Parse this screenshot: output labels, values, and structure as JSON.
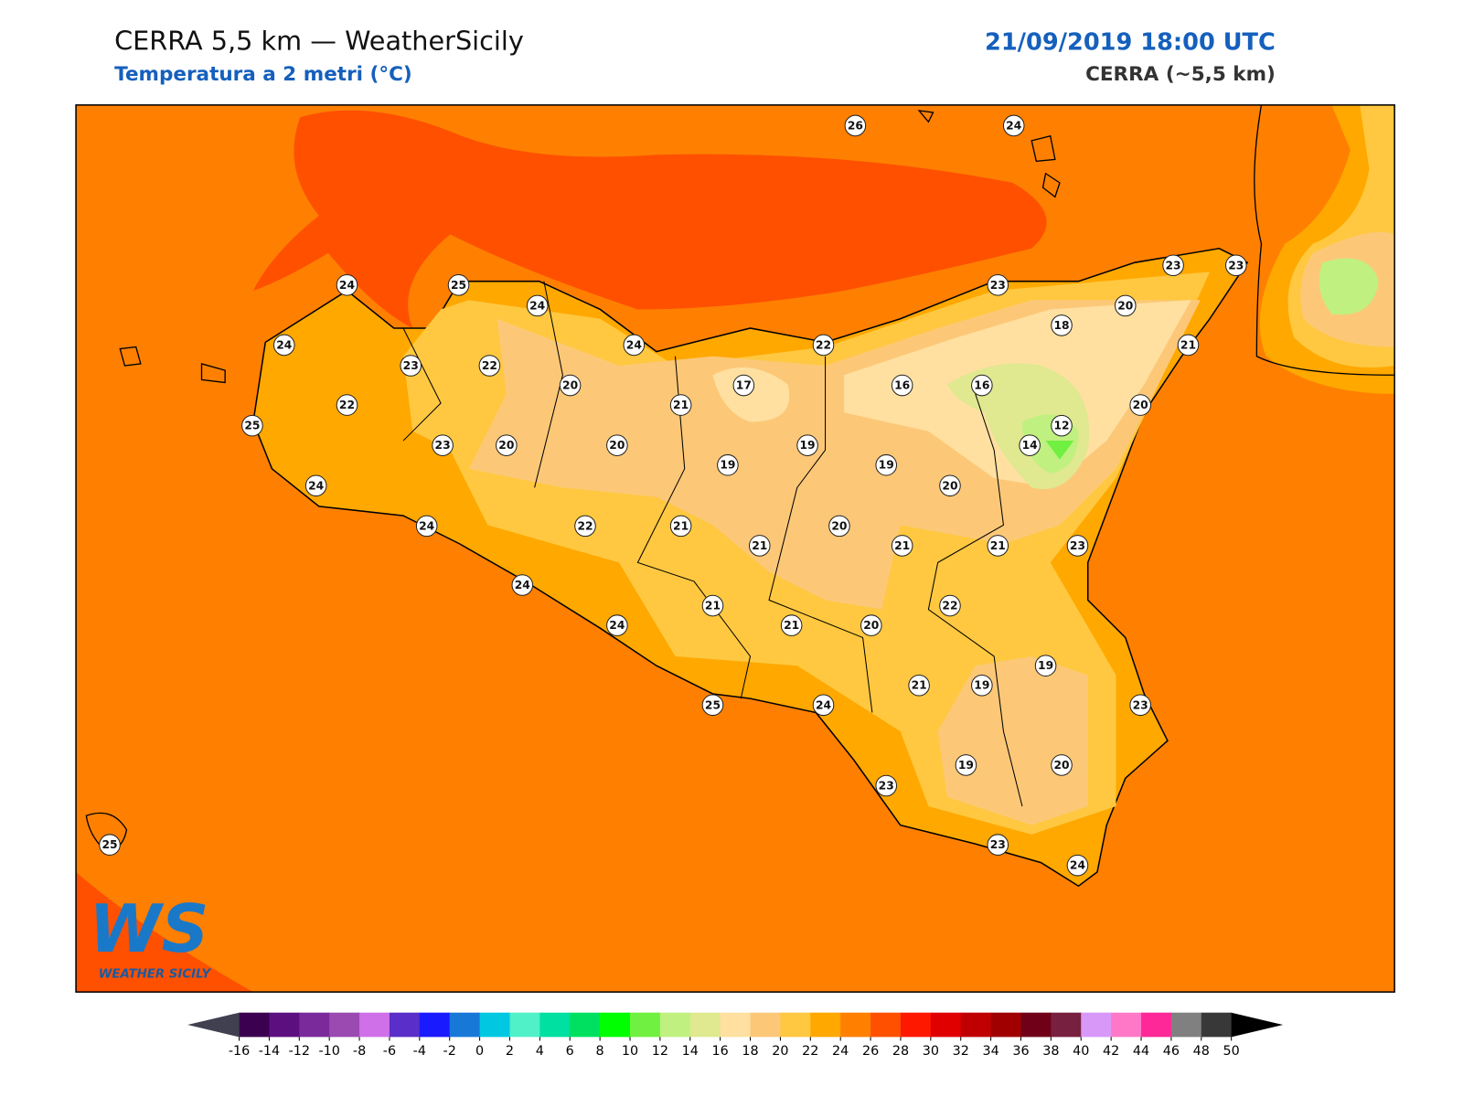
{
  "header": {
    "title": "CERRA 5,5 km — WeatherSicily",
    "subtitle": "Temperatura a 2 metri (°C)",
    "datetime": "21/09/2019 18:00 UTC",
    "model": "CERRA (~5,5 km)"
  },
  "logo": {
    "initials": "WS",
    "name": "WEATHER SICILY"
  },
  "map": {
    "stations": [
      26,
      24,
      24,
      25,
      24,
      24,
      23,
      22,
      24,
      22,
      23,
      23,
      23,
      20,
      18,
      21,
      20,
      21,
      17,
      16,
      16,
      22,
      25,
      20,
      12,
      14,
      23,
      20,
      20,
      19,
      19,
      19,
      20,
      24,
      24,
      22,
      21,
      21,
      20,
      21,
      21,
      23,
      24,
      22,
      21,
      21,
      20,
      24,
      19,
      19,
      21,
      25,
      24,
      23,
      23,
      19,
      20,
      23,
      24,
      25
    ]
  },
  "colorbar": {
    "ticks": [
      -16,
      -14,
      -12,
      -10,
      -8,
      -6,
      -4,
      -2,
      0,
      2,
      4,
      6,
      8,
      10,
      12,
      14,
      16,
      18,
      20,
      22,
      24,
      26,
      28,
      30,
      32,
      34,
      36,
      38,
      40,
      42,
      44,
      46,
      48,
      50
    ],
    "colors": [
      "#3b0050",
      "#5c1080",
      "#7a2a9a",
      "#9a4ab0",
      "#d070e8",
      "#5a2ec8",
      "#1a1aff",
      "#1878d8",
      "#00c8e0",
      "#50f0c8",
      "#00e0a0",
      "#00e060",
      "#00ff00",
      "#70f040",
      "#c0f080",
      "#e0e890",
      "#ffe0a0",
      "#fcc878",
      "#ffc840",
      "#ffa800",
      "#ff8000",
      "#ff5000",
      "#ff1800",
      "#e00000",
      "#c00000",
      "#a00000",
      "#700018",
      "#782040",
      "#d898f8",
      "#ff78c8",
      "#ff2898",
      "#808080",
      "#383838"
    ]
  }
}
